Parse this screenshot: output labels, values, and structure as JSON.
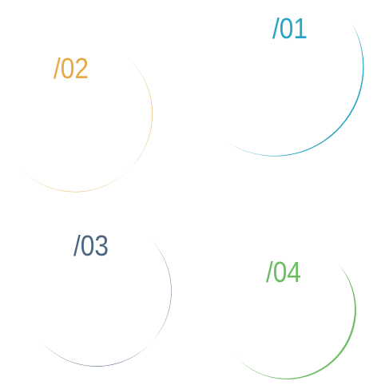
{
  "steps": [
    {
      "label": "/01",
      "color": "#2aa3c4"
    },
    {
      "label": "/02",
      "color": "#e5a948"
    },
    {
      "label": "/03",
      "color": "#4b6582"
    },
    {
      "label": "/04",
      "color": "#6cbd62"
    }
  ]
}
